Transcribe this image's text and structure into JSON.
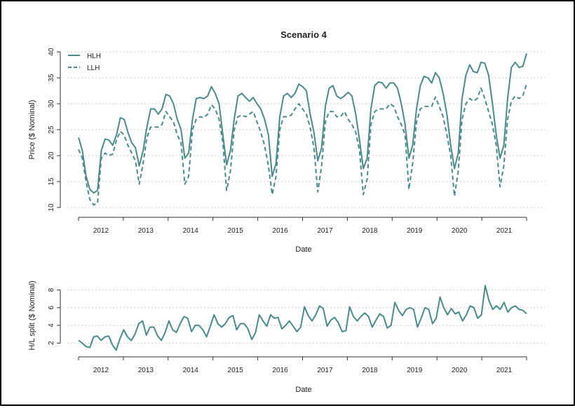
{
  "chart_data": [
    {
      "type": "line",
      "title": "Scenario 4",
      "xlabel": "Date",
      "ylabel": "Price ($ Nominal)",
      "ylim": [
        10,
        40
      ],
      "yticks": [
        10,
        15,
        20,
        25,
        30,
        35,
        40
      ],
      "grid": "horizontal dotted",
      "legend_placement": "top-left",
      "colors": {
        "series": "#4a8a8a"
      },
      "x_tick_labels": [
        "2012",
        "2013",
        "2014",
        "2015",
        "2016",
        "2017",
        "2018",
        "2019",
        "2020",
        "2021"
      ],
      "x_start": "2011-12",
      "series": [
        {
          "name": "HLH",
          "style": "solid",
          "values": [
            23.5,
            21,
            16,
            13.5,
            12.8,
            13.3,
            21,
            23.2,
            23,
            22,
            24,
            27.3,
            27,
            24.5,
            22.5,
            21.5,
            18,
            21,
            25.5,
            29,
            29,
            28,
            29,
            31.8,
            31.5,
            30,
            27,
            25,
            19.5,
            20.5,
            27,
            31,
            31.2,
            31,
            31.5,
            33.3,
            32,
            30,
            24,
            18.2,
            21,
            27,
            31.5,
            32,
            31.2,
            30.5,
            31.2,
            30,
            29,
            27,
            24,
            16,
            18.5,
            27.5,
            31.5,
            32,
            31.2,
            32,
            33.8,
            33.3,
            32.5,
            28,
            24.5,
            19,
            21.5,
            29.5,
            33,
            33.5,
            31.5,
            31,
            31.5,
            32.2,
            31.5,
            28,
            23,
            17.5,
            19.5,
            29,
            33.5,
            34.2,
            34,
            33,
            34,
            34,
            33,
            30,
            26,
            19.5,
            22,
            29,
            33.5,
            35.3,
            35,
            34,
            36,
            35,
            32,
            28,
            22,
            17.5,
            20.5,
            31,
            35.5,
            37.5,
            36.2,
            36,
            38,
            37.8,
            35.5,
            30,
            24,
            19.5,
            22,
            31,
            37,
            38,
            37,
            37.2,
            39.7
          ]
        },
        {
          "name": "LLH",
          "style": "dashed",
          "values": [
            21.2,
            19.5,
            15,
            11.5,
            10.5,
            10.8,
            19.5,
            20.5,
            20,
            20.3,
            23,
            24.7,
            24,
            22,
            20.5,
            19,
            14.5,
            18.5,
            23.5,
            25.5,
            25.5,
            25.5,
            26,
            28.5,
            27.5,
            26.5,
            24,
            22.5,
            14.5,
            16,
            25,
            27,
            27.5,
            27.3,
            28,
            29.8,
            29,
            27,
            22.5,
            13.3,
            17,
            25,
            27.5,
            27.8,
            27.5,
            28,
            28.5,
            26.5,
            24.5,
            22,
            18,
            12.5,
            16,
            25,
            27.5,
            27.5,
            27.8,
            29,
            30,
            29,
            28,
            25.5,
            21.5,
            13,
            18,
            26.5,
            28.5,
            28.5,
            27.5,
            27.5,
            28.5,
            27,
            26,
            24.5,
            21,
            12.5,
            15.5,
            26,
            28.5,
            29,
            29,
            29,
            30,
            29.5,
            27.5,
            26,
            24,
            13.5,
            18.5,
            26.5,
            29,
            29.5,
            29.5,
            29.5,
            31.3,
            29.5,
            27.5,
            24,
            20,
            12.2,
            17,
            27,
            30,
            31,
            30.5,
            31,
            33,
            31,
            28.5,
            26,
            22,
            14,
            18,
            27,
            30.5,
            31.5,
            31,
            31.5,
            33.8
          ]
        }
      ]
    },
    {
      "type": "line",
      "title": "",
      "xlabel": "Date",
      "ylabel": "H/L split ($ Nominal)",
      "ylim": [
        1,
        9
      ],
      "yticks": [
        2,
        4,
        6,
        8
      ],
      "grid": "horizontal dotted",
      "x_tick_labels": [
        "2012",
        "2013",
        "2014",
        "2015",
        "2016",
        "2017",
        "2018",
        "2019",
        "2020",
        "2021"
      ],
      "x_start": "2011-12",
      "series": [
        {
          "name": "",
          "style": "solid",
          "values": [
            2.3,
            2,
            1.6,
            1.5,
            2.7,
            2.8,
            2.3,
            2.7,
            2.8,
            1.8,
            1.2,
            2.5,
            3.5,
            2.7,
            2.3,
            3,
            4.2,
            4.5,
            2.9,
            3.8,
            3.8,
            2.8,
            2.3,
            3.2,
            4.5,
            3.5,
            3.2,
            4.2,
            5,
            4.8,
            3.3,
            4,
            4,
            3.5,
            2.7,
            3.9,
            5.2,
            4.2,
            3.8,
            4.2,
            4.9,
            5.1,
            3.5,
            4.2,
            4.2,
            3.6,
            2.4,
            3.2,
            5.2,
            4.5,
            3.9,
            5.2,
            4.8,
            4.9,
            3.6,
            4,
            4.5,
            3.9,
            3.3,
            3.8,
            6.1,
            5.1,
            4.5,
            5.2,
            6.2,
            5.9,
            3.9,
            4.6,
            4.9,
            4.3,
            3.3,
            3.4,
            6.1,
            5,
            4.5,
            5,
            5.4,
            5,
            3.8,
            4.6,
            5.3,
            5,
            3.7,
            4,
            6.6,
            5.7,
            5.1,
            5.8,
            6,
            5.8,
            3.8,
            4.8,
            6,
            5.8,
            4.2,
            4.8,
            7.2,
            6,
            5.2,
            5.9,
            5.3,
            5.5,
            4.5,
            5.2,
            6.2,
            6,
            4.8,
            5.2,
            8.5,
            6.8,
            5.8,
            6.2,
            5.8,
            6.6,
            5.5,
            6,
            6.2,
            5.8,
            5.7,
            5.3
          ]
        }
      ]
    }
  ]
}
